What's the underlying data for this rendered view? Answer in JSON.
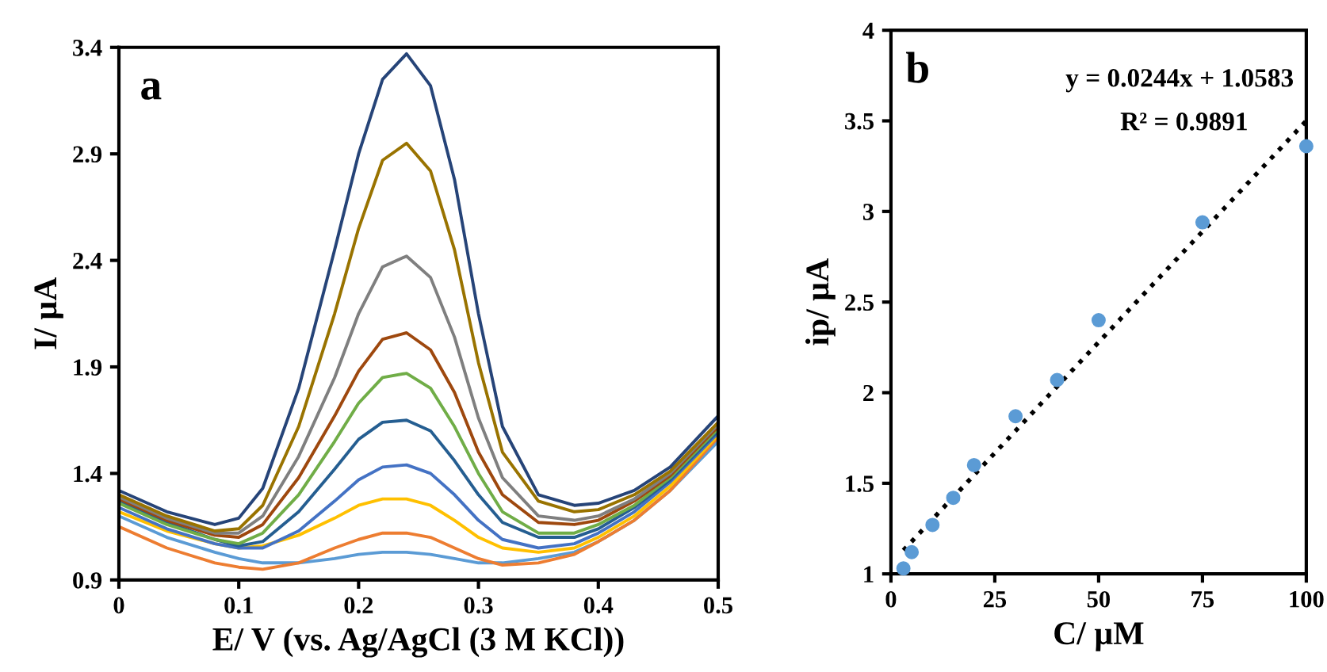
{
  "chart_data": [
    {
      "type": "line",
      "xlabel": "E/ V (vs. Ag/AgCl (3 M KCl))",
      "ylabel": "I/ µA",
      "annotations": [
        "a"
      ],
      "x": [
        0,
        0.04,
        0.08,
        0.1,
        0.12,
        0.15,
        0.18,
        0.2,
        0.22,
        0.24,
        0.26,
        0.28,
        0.3,
        0.32,
        0.35,
        0.38,
        0.4,
        0.43,
        0.46,
        0.5
      ],
      "xlim": [
        0,
        0.5
      ],
      "xticks": [
        0,
        0.1,
        0.2,
        0.3,
        0.4,
        0.5
      ],
      "ylim": [
        0.9,
        3.4
      ],
      "yticks": [
        0.9,
        1.4,
        1.9,
        2.4,
        2.9,
        3.4
      ],
      "grid": false,
      "legend": false,
      "marker": "none",
      "line_style": "solid",
      "series": [
        {
          "color": "#5b9bd5",
          "values": [
            1.2,
            1.1,
            1.03,
            1.0,
            0.98,
            0.98,
            1.0,
            1.02,
            1.03,
            1.03,
            1.02,
            1.0,
            0.98,
            0.98,
            1.0,
            1.03,
            1.08,
            1.18,
            1.32,
            1.55
          ]
        },
        {
          "color": "#ed7d31",
          "values": [
            1.15,
            1.05,
            0.98,
            0.96,
            0.95,
            0.98,
            1.05,
            1.09,
            1.12,
            1.12,
            1.1,
            1.05,
            1.0,
            0.97,
            0.98,
            1.02,
            1.08,
            1.18,
            1.32,
            1.57
          ]
        },
        {
          "color": "#ffc000",
          "values": [
            1.22,
            1.13,
            1.07,
            1.05,
            1.06,
            1.11,
            1.19,
            1.25,
            1.28,
            1.28,
            1.25,
            1.18,
            1.1,
            1.05,
            1.03,
            1.05,
            1.1,
            1.2,
            1.34,
            1.58
          ]
        },
        {
          "color": "#4472c4",
          "values": [
            1.24,
            1.14,
            1.07,
            1.05,
            1.05,
            1.13,
            1.27,
            1.37,
            1.43,
            1.44,
            1.4,
            1.3,
            1.18,
            1.09,
            1.05,
            1.07,
            1.12,
            1.22,
            1.36,
            1.59
          ]
        },
        {
          "color": "#255e91",
          "values": [
            1.27,
            1.17,
            1.09,
            1.06,
            1.08,
            1.22,
            1.42,
            1.56,
            1.64,
            1.65,
            1.6,
            1.46,
            1.3,
            1.17,
            1.1,
            1.1,
            1.14,
            1.24,
            1.37,
            1.6
          ]
        },
        {
          "color": "#70ad47",
          "values": [
            1.26,
            1.16,
            1.09,
            1.07,
            1.12,
            1.3,
            1.55,
            1.73,
            1.85,
            1.87,
            1.8,
            1.62,
            1.4,
            1.22,
            1.12,
            1.12,
            1.16,
            1.25,
            1.38,
            1.61
          ]
        },
        {
          "color": "#9e480e",
          "values": [
            1.28,
            1.18,
            1.11,
            1.1,
            1.16,
            1.38,
            1.67,
            1.88,
            2.03,
            2.06,
            1.98,
            1.78,
            1.5,
            1.3,
            1.17,
            1.16,
            1.18,
            1.27,
            1.39,
            1.62
          ]
        },
        {
          "color": "#7f7f7f",
          "values": [
            1.29,
            1.19,
            1.12,
            1.12,
            1.2,
            1.48,
            1.85,
            2.15,
            2.37,
            2.42,
            2.32,
            2.04,
            1.66,
            1.38,
            1.2,
            1.18,
            1.2,
            1.28,
            1.4,
            1.63
          ]
        },
        {
          "color": "#997300",
          "values": [
            1.3,
            1.2,
            1.13,
            1.14,
            1.25,
            1.62,
            2.15,
            2.55,
            2.87,
            2.95,
            2.82,
            2.45,
            1.92,
            1.5,
            1.27,
            1.22,
            1.23,
            1.3,
            1.41,
            1.64
          ]
        },
        {
          "color": "#264478",
          "values": [
            1.32,
            1.22,
            1.16,
            1.19,
            1.33,
            1.8,
            2.45,
            2.9,
            3.25,
            3.37,
            3.22,
            2.78,
            2.15,
            1.62,
            1.3,
            1.25,
            1.26,
            1.32,
            1.43,
            1.67
          ]
        }
      ]
    },
    {
      "type": "scatter",
      "xlabel": "C/ µM",
      "ylabel": "ip/ µA",
      "annotations": [
        "b",
        "y = 0.0244x + 1.0583",
        "R² = 0.9891"
      ],
      "xlim": [
        0,
        100
      ],
      "xticks": [
        0,
        25,
        50,
        75,
        100
      ],
      "ylim": [
        1,
        4
      ],
      "yticks": [
        1,
        1.5,
        2,
        2.5,
        3,
        3.5,
        4
      ],
      "grid": false,
      "legend": false,
      "marker": "circle",
      "series": [
        {
          "type": "scatter",
          "color": "#5b9bd5",
          "x": [
            3,
            5,
            10,
            15,
            20,
            30,
            40,
            50,
            75,
            100
          ],
          "values": [
            1.03,
            1.12,
            1.27,
            1.42,
            1.6,
            1.87,
            2.07,
            2.4,
            2.94,
            3.36
          ]
        },
        {
          "type": "line",
          "color": "#000000",
          "line_style": "dotted",
          "marker": "none",
          "x": [
            3,
            100
          ],
          "values": [
            1.13,
            3.5
          ]
        }
      ]
    }
  ]
}
